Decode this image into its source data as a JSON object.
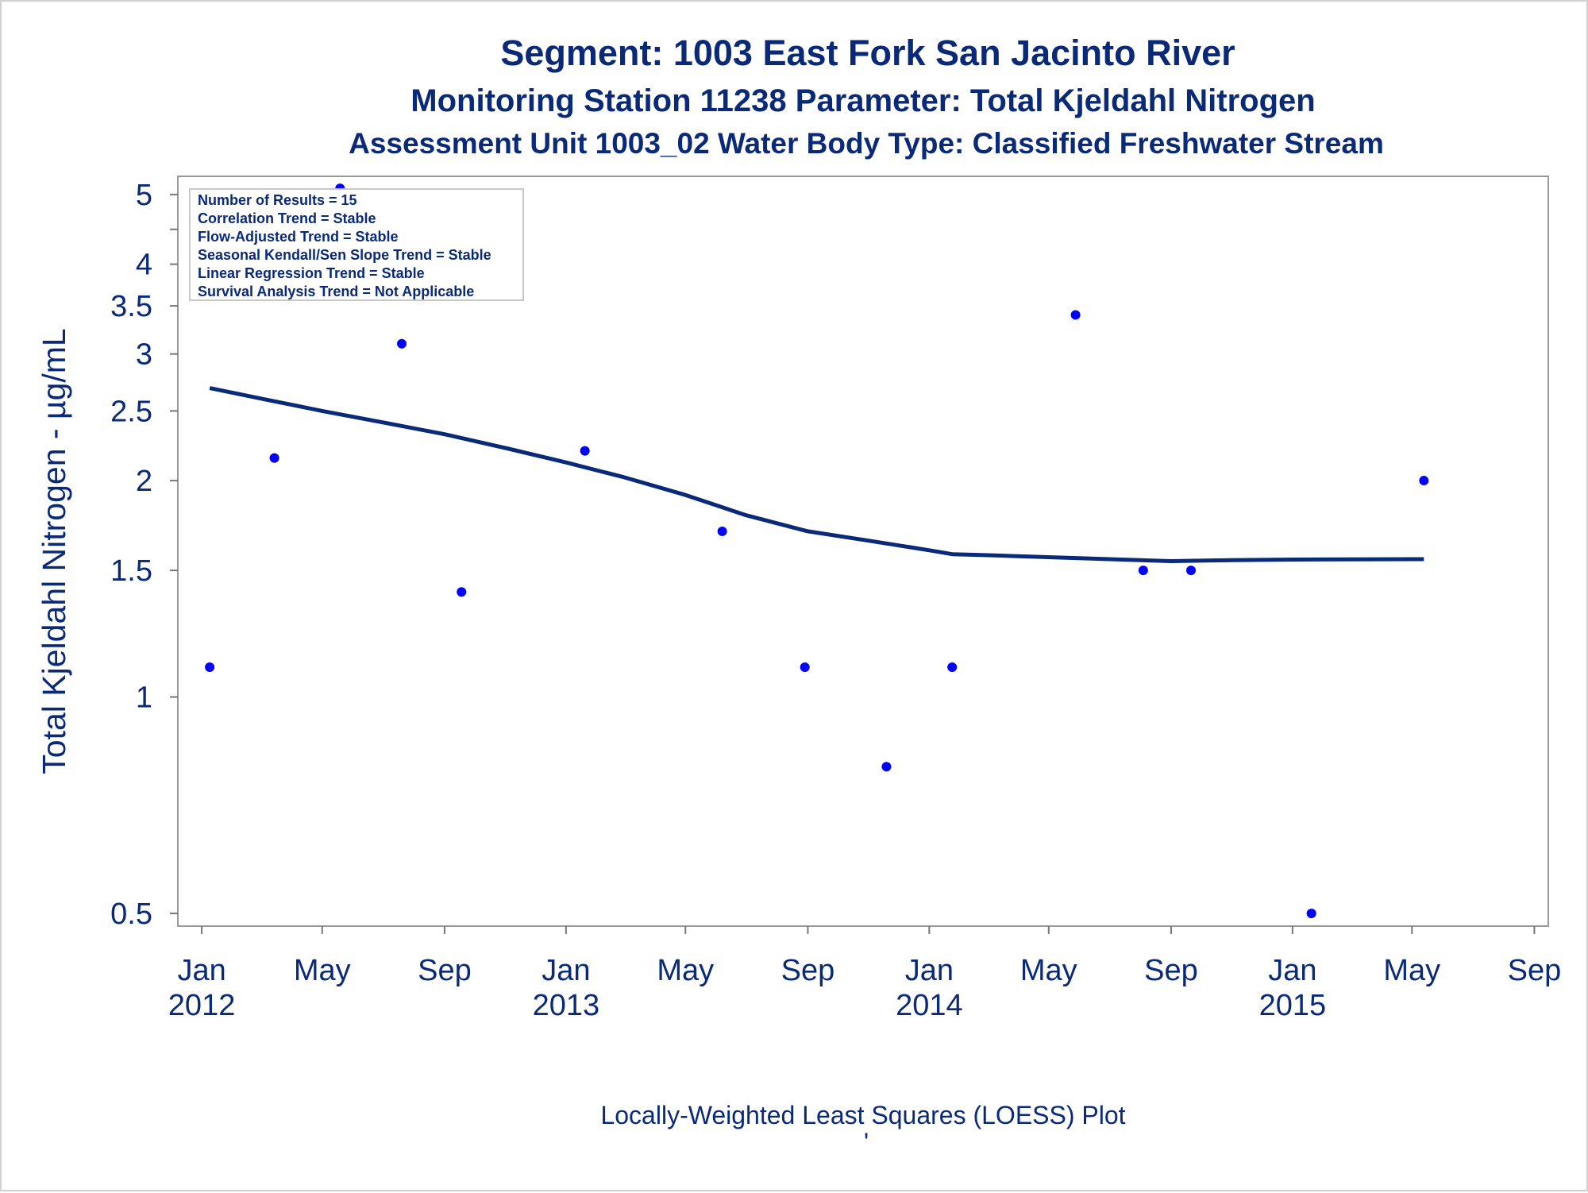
{
  "chart_data": {
    "type": "scatter",
    "title": "Segment: 1003  East Fork San Jacinto River",
    "subtitle": "Monitoring Station 11238 Parameter: Total Kjeldahl Nitrogen",
    "subtitle2": "Assessment Unit 1003_02   Water Body Type: Classified Freshwater Stream",
    "xlabel": "",
    "ylabel": "Total Kjeldahl Nitrogen -  µg/mL",
    "footnote": "Locally-Weighted Least Squares (LOESS) Plot",
    "footnote2": "'",
    "y_scale": "log",
    "ylim": [
      0.48,
      5.3
    ],
    "xlim": [
      "2011-12-08",
      "2015-09-15"
    ],
    "y_ticks": [
      {
        "value": 0.5,
        "label": "0.5"
      },
      {
        "value": 1,
        "label": "1"
      },
      {
        "value": 1.5,
        "label": "1.5"
      },
      {
        "value": 2,
        "label": "2"
      },
      {
        "value": 2.5,
        "label": "2.5"
      },
      {
        "value": 3,
        "label": "3"
      },
      {
        "value": 3.5,
        "label": "3.5"
      },
      {
        "value": 4,
        "label": "4"
      },
      {
        "value": 5,
        "label": "5"
      }
    ],
    "x_ticks": [
      {
        "date": "2012-01-01",
        "label": "Jan",
        "year": "2012"
      },
      {
        "date": "2012-05-01",
        "label": "May",
        "year": ""
      },
      {
        "date": "2012-09-01",
        "label": "Sep",
        "year": ""
      },
      {
        "date": "2013-01-01",
        "label": "Jan",
        "year": "2013"
      },
      {
        "date": "2013-05-01",
        "label": "May",
        "year": ""
      },
      {
        "date": "2013-09-01",
        "label": "Sep",
        "year": ""
      },
      {
        "date": "2014-01-01",
        "label": "Jan",
        "year": "2014"
      },
      {
        "date": "2014-05-01",
        "label": "May",
        "year": ""
      },
      {
        "date": "2014-09-01",
        "label": "Sep",
        "year": ""
      },
      {
        "date": "2015-01-01",
        "label": "Jan",
        "year": "2015"
      },
      {
        "date": "2015-05-01",
        "label": "May",
        "year": ""
      },
      {
        "date": "2015-09-01",
        "label": "Sep",
        "year": ""
      }
    ],
    "series": [
      {
        "type": "scatter",
        "color": "#0000ff",
        "points": [
          {
            "x": "2012-01-09",
            "y": 1.1
          },
          {
            "x": "2012-03-14",
            "y": 2.15
          },
          {
            "x": "2012-05-19",
            "y": 5.1
          },
          {
            "x": "2012-07-20",
            "y": 3.1
          },
          {
            "x": "2012-09-18",
            "y": 1.4
          },
          {
            "x": "2013-01-20",
            "y": 2.2
          },
          {
            "x": "2013-06-07",
            "y": 1.7
          },
          {
            "x": "2013-08-29",
            "y": 1.1
          },
          {
            "x": "2013-11-19",
            "y": 0.8
          },
          {
            "x": "2014-01-24",
            "y": 1.1
          },
          {
            "x": "2014-05-28",
            "y": 3.4
          },
          {
            "x": "2014-08-04",
            "y": 1.5
          },
          {
            "x": "2014-09-21",
            "y": 1.5
          },
          {
            "x": "2015-01-20",
            "y": 0.5
          },
          {
            "x": "2015-05-13",
            "y": 2.0
          }
        ]
      },
      {
        "type": "line",
        "color": "#0a2a78",
        "points": [
          {
            "x": "2012-01-09",
            "y": 2.69
          },
          {
            "x": "2012-03-01",
            "y": 2.6
          },
          {
            "x": "2012-05-01",
            "y": 2.5
          },
          {
            "x": "2012-07-01",
            "y": 2.41
          },
          {
            "x": "2012-09-01",
            "y": 2.32
          },
          {
            "x": "2012-11-01",
            "y": 2.22
          },
          {
            "x": "2013-01-01",
            "y": 2.12
          },
          {
            "x": "2013-03-01",
            "y": 2.02
          },
          {
            "x": "2013-05-01",
            "y": 1.91
          },
          {
            "x": "2013-07-01",
            "y": 1.79
          },
          {
            "x": "2013-09-01",
            "y": 1.7
          },
          {
            "x": "2013-11-01",
            "y": 1.65
          },
          {
            "x": "2014-01-01",
            "y": 1.6
          },
          {
            "x": "2014-01-24",
            "y": 1.58
          },
          {
            "x": "2014-03-01",
            "y": 1.575
          },
          {
            "x": "2014-05-01",
            "y": 1.565
          },
          {
            "x": "2014-07-01",
            "y": 1.555
          },
          {
            "x": "2014-09-01",
            "y": 1.545
          },
          {
            "x": "2014-11-01",
            "y": 1.55
          },
          {
            "x": "2015-01-01",
            "y": 1.553
          },
          {
            "x": "2015-05-13",
            "y": 1.555
          }
        ]
      }
    ],
    "stats_box": [
      "Number of Results = 15",
      "Correlation Trend = Stable",
      "Flow-Adjusted Trend = Stable",
      "Seasonal Kendall/Sen Slope Trend = Stable",
      "Linear Regression Trend = Stable",
      "Survival Analysis Trend = Not Applicable"
    ],
    "legend": "none",
    "grid": false
  }
}
